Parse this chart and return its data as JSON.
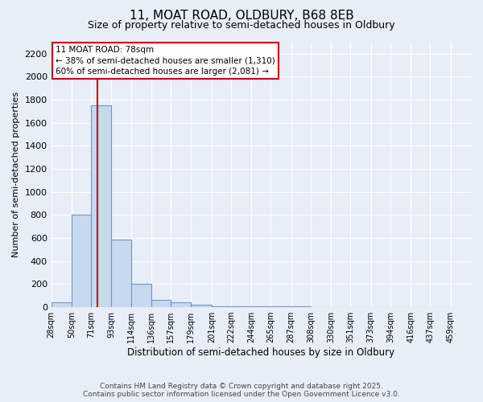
{
  "title": "11, MOAT ROAD, OLDBURY, B68 8EB",
  "subtitle": "Size of property relative to semi-detached houses in Oldbury",
  "xlabel": "Distribution of semi-detached houses by size in Oldbury",
  "ylabel": "Number of semi-detached properties",
  "bin_labels": [
    "28sqm",
    "50sqm",
    "71sqm",
    "93sqm",
    "114sqm",
    "136sqm",
    "157sqm",
    "179sqm",
    "201sqm",
    "222sqm",
    "244sqm",
    "265sqm",
    "287sqm",
    "308sqm",
    "330sqm",
    "351sqm",
    "373sqm",
    "394sqm",
    "416sqm",
    "437sqm",
    "459sqm"
  ],
  "bin_edges": [
    28,
    50,
    71,
    93,
    114,
    136,
    157,
    179,
    201,
    222,
    244,
    265,
    287,
    308,
    330,
    351,
    373,
    394,
    416,
    437,
    459
  ],
  "bar_heights": [
    40,
    800,
    1750,
    590,
    200,
    65,
    40,
    20,
    10,
    7,
    5,
    5,
    5,
    4,
    4,
    4,
    3,
    3,
    3,
    3
  ],
  "bar_color": "#c8d9ee",
  "bar_edge_color": "#6699cc",
  "property_size": 78,
  "red_line_color": "#cc0000",
  "annotation_line1": "11 MOAT ROAD: 78sqm",
  "annotation_line2": "← 38% of semi-detached houses are smaller (1,310)",
  "annotation_line3": "60% of semi-detached houses are larger (2,081) →",
  "annotation_box_color": "#ffffff",
  "annotation_border_color": "#cc0000",
  "ylim": [
    0,
    2300
  ],
  "yticks": [
    0,
    200,
    400,
    600,
    800,
    1000,
    1200,
    1400,
    1600,
    1800,
    2000,
    2200
  ],
  "footer_line1": "Contains HM Land Registry data © Crown copyright and database right 2025.",
  "footer_line2": "Contains public sector information licensed under the Open Government Licence v3.0.",
  "bg_color": "#e8eef8",
  "plot_bg_color": "#e8eef8",
  "title_fontsize": 11,
  "subtitle_fontsize": 9
}
